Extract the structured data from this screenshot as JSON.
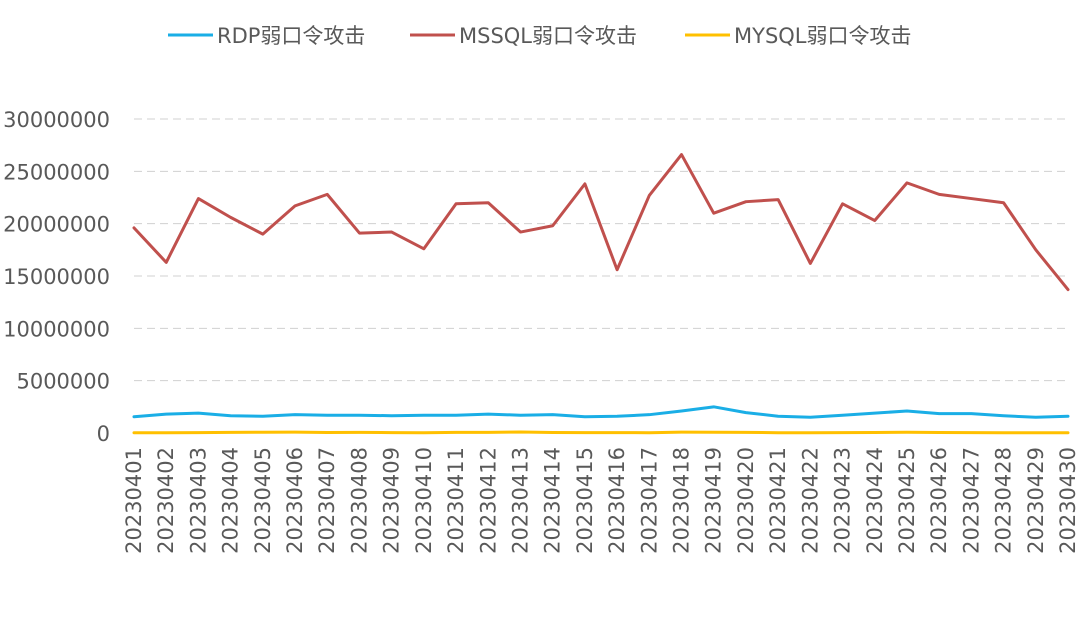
{
  "chart_data": {
    "type": "line",
    "title": "",
    "xlabel": "",
    "ylabel": "",
    "ylim": [
      0,
      30000000
    ],
    "yticks": [
      0,
      5000000,
      10000000,
      15000000,
      20000000,
      25000000,
      30000000
    ],
    "grid": true,
    "legend_position": "top",
    "categories": [
      "20230401",
      "20230402",
      "20230403",
      "20230404",
      "20230405",
      "20230406",
      "20230407",
      "20230408",
      "20230409",
      "20230410",
      "20230411",
      "20230412",
      "20230413",
      "20230414",
      "20230415",
      "20230416",
      "20230417",
      "20230418",
      "20230419",
      "20230420",
      "20230421",
      "20230422",
      "20230423",
      "20230424",
      "20230425",
      "20230426",
      "20230427",
      "20230428",
      "20230429",
      "20230430"
    ],
    "series": [
      {
        "name": "RDP弱口令攻击",
        "color": "#1aaee6",
        "values": [
          1550000,
          1800000,
          1900000,
          1650000,
          1600000,
          1750000,
          1700000,
          1700000,
          1650000,
          1700000,
          1700000,
          1800000,
          1700000,
          1750000,
          1550000,
          1600000,
          1750000,
          2100000,
          2500000,
          1950000,
          1600000,
          1500000,
          1700000,
          1900000,
          2100000,
          1850000,
          1850000,
          1650000,
          1500000,
          1600000
        ]
      },
      {
        "name": "MSSQL弱口令攻击",
        "color": "#c0504d",
        "values": [
          19600000,
          16300000,
          22400000,
          20600000,
          19000000,
          21700000,
          22800000,
          19100000,
          19200000,
          17600000,
          21900000,
          22000000,
          19200000,
          19800000,
          23800000,
          15600000,
          22700000,
          26600000,
          21000000,
          22100000,
          22300000,
          16200000,
          21900000,
          20300000,
          23900000,
          22800000,
          22400000,
          22000000,
          17500000,
          13700000
        ]
      },
      {
        "name": "MYSQL弱口令攻击",
        "color": "#ffc000",
        "values": [
          20000,
          30000,
          40000,
          60000,
          70000,
          80000,
          50000,
          60000,
          40000,
          30000,
          60000,
          60000,
          100000,
          50000,
          40000,
          40000,
          30000,
          80000,
          70000,
          60000,
          30000,
          30000,
          40000,
          50000,
          70000,
          50000,
          40000,
          30000,
          30000,
          20000
        ]
      }
    ]
  }
}
